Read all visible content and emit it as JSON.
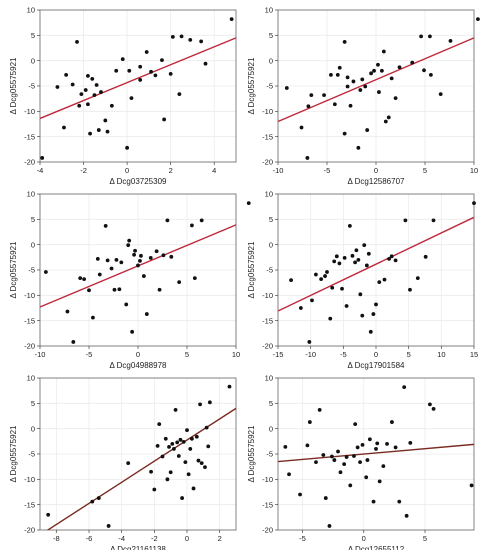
{
  "figure": {
    "ylabel": "Δ Dcg05575921"
  },
  "chart_data": [
    {
      "type": "scatter",
      "xlabel": "Δ Dcg03725309",
      "ylabel": "Δ Dcg05575921",
      "xlim": [
        -4,
        5
      ],
      "ylim": [
        -20,
        10
      ],
      "xticks": [
        -4,
        -2,
        0,
        2,
        4
      ],
      "yticks": [
        -20,
        -15,
        -10,
        -5,
        0,
        5,
        10
      ],
      "grid": true,
      "fit_color": "#c0283b",
      "fit": {
        "x": [
          -4,
          5
        ],
        "y": [
          -11.4,
          4.5
        ]
      },
      "points": [
        [
          -3.9,
          -19.2
        ],
        [
          -3.2,
          -5.2
        ],
        [
          -2.9,
          -13.2
        ],
        [
          -2.8,
          -2.8
        ],
        [
          -2.5,
          -4.7
        ],
        [
          -2.3,
          3.7
        ],
        [
          -2.2,
          -8.9
        ],
        [
          -2.1,
          -6.6
        ],
        [
          -1.9,
          -5.8
        ],
        [
          -1.8,
          -3.0
        ],
        [
          -1.8,
          -8.6
        ],
        [
          -1.6,
          -3.6
        ],
        [
          -1.7,
          -14.4
        ],
        [
          -1.5,
          -6.8
        ],
        [
          -1.4,
          -4.8
        ],
        [
          -1.3,
          -13.7
        ],
        [
          -1.2,
          -6.2
        ],
        [
          -1.0,
          -11.8
        ],
        [
          -0.9,
          -14.0
        ],
        [
          -0.5,
          -2.0
        ],
        [
          -0.2,
          0.3
        ],
        [
          0.0,
          -17.2
        ],
        [
          0.1,
          -2.0
        ],
        [
          0.2,
          -7.4
        ],
        [
          0.6,
          -3.8
        ],
        [
          0.9,
          1.7
        ],
        [
          1.1,
          -2.2
        ],
        [
          1.3,
          -2.9
        ],
        [
          1.6,
          0.1
        ],
        [
          1.7,
          -11.6
        ],
        [
          2.0,
          -2.6
        ],
        [
          2.1,
          4.7
        ],
        [
          2.4,
          -6.6
        ],
        [
          2.5,
          4.8
        ],
        [
          2.9,
          4.1
        ],
        [
          3.4,
          3.8
        ],
        [
          3.6,
          -0.6
        ],
        [
          4.8,
          8.2
        ],
        [
          -0.7,
          -8.9
        ],
        [
          0.6,
          -1.2
        ]
      ]
    },
    {
      "type": "scatter",
      "xlabel": "Δ Dcg12586707",
      "ylabel": "Δ Dcg05575921",
      "xlim": [
        -10,
        10
      ],
      "ylim": [
        -20,
        10
      ],
      "xticks": [
        -10,
        -5,
        0,
        5,
        10
      ],
      "yticks": [
        -20,
        -15,
        -10,
        -5,
        0,
        5,
        10
      ],
      "grid": true,
      "fit_color": "#c0283b",
      "fit": {
        "x": [
          -10,
          10
        ],
        "y": [
          -12.0,
          4.5
        ]
      },
      "points": [
        [
          -9.1,
          -5.4
        ],
        [
          -7.6,
          -13.2
        ],
        [
          -7.0,
          -19.2
        ],
        [
          -6.9,
          -9.0
        ],
        [
          -6.6,
          -6.8
        ],
        [
          -5.3,
          -6.8
        ],
        [
          -4.6,
          -2.8
        ],
        [
          -4.2,
          -8.6
        ],
        [
          -3.9,
          -2.8
        ],
        [
          -3.7,
          -1.4
        ],
        [
          -3.2,
          3.7
        ],
        [
          -3.2,
          -14.4
        ],
        [
          -2.9,
          -3.3
        ],
        [
          -2.6,
          -8.9
        ],
        [
          -2.3,
          -4.1
        ],
        [
          -1.8,
          -17.2
        ],
        [
          -1.4,
          -3.7
        ],
        [
          -1.1,
          -5.1
        ],
        [
          -0.9,
          -13.7
        ],
        [
          -0.5,
          -2.5
        ],
        [
          -0.2,
          -2.0
        ],
        [
          0.3,
          -6.2
        ],
        [
          0.6,
          -2.0
        ],
        [
          0.8,
          1.8
        ],
        [
          1.0,
          -12.0
        ],
        [
          1.3,
          -11.2
        ],
        [
          1.6,
          -3.5
        ],
        [
          2.0,
          -7.4
        ],
        [
          2.4,
          -1.3
        ],
        [
          3.7,
          -0.4
        ],
        [
          4.6,
          4.8
        ],
        [
          4.9,
          -1.9
        ],
        [
          5.5,
          4.8
        ],
        [
          5.6,
          -2.8
        ],
        [
          6.6,
          -6.6
        ],
        [
          7.6,
          3.9
        ],
        [
          10.4,
          8.2
        ],
        [
          0.2,
          -0.8
        ],
        [
          -1.6,
          -5.8
        ],
        [
          -2.9,
          -5.1
        ]
      ]
    },
    {
      "type": "scatter",
      "xlabel": "Δ Dcg04988978",
      "ylabel": "Δ Dcg05575921",
      "xlim": [
        -10,
        10
      ],
      "ylim": [
        -20,
        10
      ],
      "xticks": [
        -10,
        -5,
        0,
        5,
        10
      ],
      "yticks": [
        -20,
        -15,
        -10,
        -5,
        0,
        5,
        10
      ],
      "grid": true,
      "fit_color": "#c0283b",
      "fit": {
        "x": [
          -10,
          10
        ],
        "y": [
          -12.3,
          3.9
        ]
      },
      "points": [
        [
          -9.4,
          -5.4
        ],
        [
          -7.2,
          -13.2
        ],
        [
          -6.6,
          -19.2
        ],
        [
          -5.9,
          -6.6
        ],
        [
          -5.5,
          -6.8
        ],
        [
          -5.0,
          -9.0
        ],
        [
          -4.6,
          -14.4
        ],
        [
          -4.1,
          -2.8
        ],
        [
          -3.9,
          -5.9
        ],
        [
          -3.3,
          3.7
        ],
        [
          -3.1,
          -3.1
        ],
        [
          -2.7,
          -4.7
        ],
        [
          -2.4,
          -8.9
        ],
        [
          -1.9,
          -8.8
        ],
        [
          -1.7,
          -3.5
        ],
        [
          -1.2,
          -11.8
        ],
        [
          -0.9,
          0.8
        ],
        [
          -0.6,
          -17.2
        ],
        [
          -0.4,
          -2.0
        ],
        [
          0.0,
          -4.1
        ],
        [
          0.3,
          -2.2
        ],
        [
          0.6,
          -6.2
        ],
        [
          0.9,
          -13.7
        ],
        [
          1.3,
          -2.6
        ],
        [
          1.9,
          -1.3
        ],
        [
          2.2,
          -8.9
        ],
        [
          2.6,
          -2.1
        ],
        [
          3.0,
          4.8
        ],
        [
          3.4,
          -2.4
        ],
        [
          4.2,
          -7.4
        ],
        [
          5.5,
          3.8
        ],
        [
          5.8,
          -6.6
        ],
        [
          6.5,
          4.8
        ],
        [
          11.3,
          8.2
        ],
        [
          -1.0,
          -0.1
        ],
        [
          0.2,
          -3.2
        ],
        [
          -2.2,
          -3.0
        ],
        [
          -0.3,
          -1.2
        ]
      ]
    },
    {
      "type": "scatter",
      "xlabel": "Δ Dcg17901584",
      "ylabel": "Δ Dcg05575921",
      "xlim": [
        -15,
        15
      ],
      "ylim": [
        -20,
        10
      ],
      "xticks": [
        -15,
        -10,
        -5,
        0,
        5,
        10,
        15
      ],
      "yticks": [
        -20,
        -15,
        -10,
        -5,
        0,
        5,
        10
      ],
      "grid": true,
      "fit_color": "#c0283b",
      "fit": {
        "x": [
          -15,
          15
        ],
        "y": [
          -13.1,
          5.4
        ]
      },
      "points": [
        [
          -11.5,
          -12.5
        ],
        [
          -10.2,
          -19.2
        ],
        [
          -9.2,
          -5.9
        ],
        [
          -8.4,
          -6.8
        ],
        [
          -7.8,
          -6.2
        ],
        [
          -7.5,
          -5.4
        ],
        [
          -7.0,
          -14.6
        ],
        [
          -6.7,
          -8.5
        ],
        [
          -6.4,
          -3.3
        ],
        [
          -6.0,
          -2.3
        ],
        [
          -5.6,
          -3.7
        ],
        [
          -5.2,
          -8.7
        ],
        [
          -4.8,
          -2.6
        ],
        [
          -4.5,
          -12.1
        ],
        [
          -4.0,
          3.7
        ],
        [
          -3.6,
          -2.2
        ],
        [
          -3.2,
          -3.5
        ],
        [
          -3.0,
          -1.1
        ],
        [
          -2.7,
          -3.0
        ],
        [
          -2.4,
          -9.8
        ],
        [
          -2.1,
          -14.0
        ],
        [
          -1.8,
          -0.1
        ],
        [
          -1.4,
          -4.1
        ],
        [
          -1.1,
          -1.8
        ],
        [
          -0.8,
          -17.2
        ],
        [
          -0.4,
          -13.7
        ],
        [
          0.5,
          -7.4
        ],
        [
          1.3,
          -6.9
        ],
        [
          2.0,
          -2.8
        ],
        [
          2.4,
          -2.3
        ],
        [
          3.0,
          -3.1
        ],
        [
          4.5,
          4.8
        ],
        [
          5.2,
          -8.9
        ],
        [
          6.4,
          -6.6
        ],
        [
          7.6,
          -2.4
        ],
        [
          8.8,
          4.8
        ],
        [
          15.0,
          8.2
        ],
        [
          -13.0,
          -7.0
        ],
        [
          -9.8,
          -11.0
        ],
        [
          0.0,
          -11.8
        ]
      ]
    },
    {
      "type": "scatter",
      "xlabel": "Δ Dcg21161138",
      "ylabel": "Δ Dcg05575921",
      "xlim": [
        -9,
        3
      ],
      "ylim": [
        -20,
        10
      ],
      "xticks": [
        -8,
        -6,
        -4,
        -2,
        0,
        2
      ],
      "yticks": [
        -20,
        -15,
        -10,
        -5,
        0,
        5,
        10
      ],
      "grid": true,
      "fit_color": "#7a2b22",
      "fit": {
        "x": [
          -9,
          3
        ],
        "y": [
          -21.0,
          4.0
        ]
      },
      "points": [
        [
          -8.5,
          -17.0
        ],
        [
          -5.8,
          -14.4
        ],
        [
          -5.4,
          -13.7
        ],
        [
          -4.8,
          -19.2
        ],
        [
          -3.6,
          -6.8
        ],
        [
          -2.2,
          -8.5
        ],
        [
          -2.0,
          -12.0
        ],
        [
          -1.8,
          -3.4
        ],
        [
          -1.7,
          0.9
        ],
        [
          -1.5,
          -5.5
        ],
        [
          -1.3,
          -2.0
        ],
        [
          -1.2,
          -10.0
        ],
        [
          -1.1,
          -3.6
        ],
        [
          -1.0,
          -8.6
        ],
        [
          -0.8,
          -4.0
        ],
        [
          -0.7,
          3.7
        ],
        [
          -0.6,
          -2.7
        ],
        [
          -0.5,
          -5.4
        ],
        [
          -0.4,
          -2.2
        ],
        [
          -0.3,
          -13.7
        ],
        [
          -0.2,
          -2.6
        ],
        [
          -0.1,
          -6.6
        ],
        [
          0.0,
          -0.3
        ],
        [
          0.1,
          -9.0
        ],
        [
          0.3,
          -2.0
        ],
        [
          0.4,
          -11.8
        ],
        [
          0.6,
          -1.6
        ],
        [
          0.7,
          -6.3
        ],
        [
          0.8,
          4.8
        ],
        [
          0.9,
          -6.8
        ],
        [
          1.1,
          -7.6
        ],
        [
          1.2,
          0.2
        ],
        [
          1.3,
          -3.5
        ],
        [
          1.4,
          5.2
        ],
        [
          2.6,
          8.3
        ],
        [
          -0.9,
          -3.0
        ],
        [
          0.2,
          -4.0
        ]
      ]
    },
    {
      "type": "scatter",
      "xlabel": "Δ Dcg12655112",
      "ylabel": "Δ Dcg05575921",
      "xlim": [
        -7,
        9
      ],
      "ylim": [
        -20,
        10
      ],
      "xticks": [
        -5,
        0,
        5
      ],
      "yticks": [
        -20,
        -15,
        -10,
        -5,
        0,
        5,
        10
      ],
      "grid": true,
      "fit_color": "#7a2b22",
      "fit": {
        "x": [
          -7,
          9
        ],
        "y": [
          -6.5,
          -3.1
        ]
      },
      "points": [
        [
          -6.4,
          -3.6
        ],
        [
          -6.1,
          -9.0
        ],
        [
          -5.2,
          -13.0
        ],
        [
          -4.4,
          1.3
        ],
        [
          -3.9,
          -6.6
        ],
        [
          -3.6,
          3.7
        ],
        [
          -3.3,
          -5.2
        ],
        [
          -3.1,
          -13.7
        ],
        [
          -2.8,
          -19.2
        ],
        [
          -2.6,
          -5.5
        ],
        [
          -2.4,
          -6.2
        ],
        [
          -2.1,
          -4.5
        ],
        [
          -1.9,
          -8.6
        ],
        [
          -1.6,
          -7.0
        ],
        [
          -1.4,
          -5.6
        ],
        [
          -1.1,
          -11.2
        ],
        [
          -0.8,
          -5.4
        ],
        [
          -0.7,
          0.9
        ],
        [
          -0.5,
          -3.7
        ],
        [
          -0.3,
          -6.6
        ],
        [
          -0.1,
          -3.2
        ],
        [
          0.2,
          -9.6
        ],
        [
          0.5,
          -2.1
        ],
        [
          0.8,
          -14.4
        ],
        [
          1.1,
          -2.9
        ],
        [
          1.3,
          -10.4
        ],
        [
          1.6,
          -7.4
        ],
        [
          1.9,
          -3.0
        ],
        [
          2.3,
          1.3
        ],
        [
          2.6,
          -3.7
        ],
        [
          2.9,
          -14.4
        ],
        [
          3.3,
          8.2
        ],
        [
          3.5,
          -17.2
        ],
        [
          3.8,
          -2.8
        ],
        [
          5.4,
          4.8
        ],
        [
          5.7,
          3.9
        ],
        [
          8.8,
          -11.2
        ],
        [
          1.0,
          -4.0
        ],
        [
          -4.6,
          -3.3
        ],
        [
          0.3,
          -6.2
        ]
      ]
    }
  ]
}
